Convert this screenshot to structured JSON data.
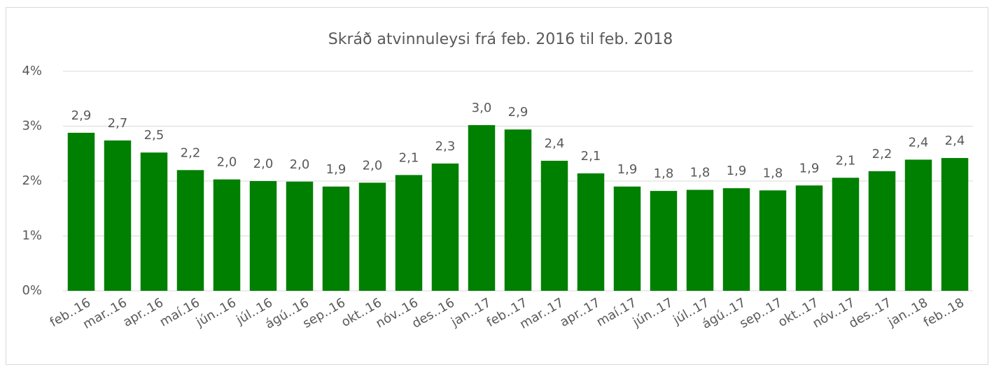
{
  "chart_data": {
    "type": "bar",
    "title": "Skráð atvinnuleysi frá feb. 2016 til feb. 2018",
    "categories": [
      "feb..16",
      "mar..16",
      "apr..16",
      "maí.16",
      "jún..16",
      "júl..16",
      "ágú..16",
      "sep..16",
      "okt..16",
      "nóv..16",
      "des..16",
      "jan..17",
      "feb..17",
      "mar..17",
      "apr..17",
      "maí.17",
      "jún..17",
      "júl..17",
      "ágú..17",
      "sep..17",
      "okt..17",
      "nóv..17",
      "des..17",
      "jan..18",
      "feb..18"
    ],
    "values": [
      2.88,
      2.74,
      2.52,
      2.2,
      2.03,
      2.0,
      1.99,
      1.9,
      1.97,
      2.11,
      2.32,
      3.02,
      2.94,
      2.37,
      2.14,
      1.9,
      1.82,
      1.84,
      1.87,
      1.83,
      1.92,
      2.06,
      2.18,
      2.39,
      2.42
    ],
    "value_labels": [
      "2,9",
      "2,7",
      "2,5",
      "2,2",
      "2,0",
      "2,0",
      "2,0",
      "1,9",
      "2,0",
      "2,1",
      "2,3",
      "3,0",
      "2,9",
      "2,4",
      "2,1",
      "1,9",
      "1,8",
      "1,8",
      "1,9",
      "1,8",
      "1,9",
      "2,1",
      "2,2",
      "2,4",
      "2,4"
    ],
    "color": "#008000",
    "ylim": [
      0,
      4
    ],
    "yticks": [
      {
        "value": 0,
        "label": "0%"
      },
      {
        "value": 1,
        "label": "1%"
      },
      {
        "value": 2,
        "label": "2%"
      },
      {
        "value": 3,
        "label": "3%"
      },
      {
        "value": 4,
        "label": "4%"
      }
    ],
    "grid": true
  }
}
